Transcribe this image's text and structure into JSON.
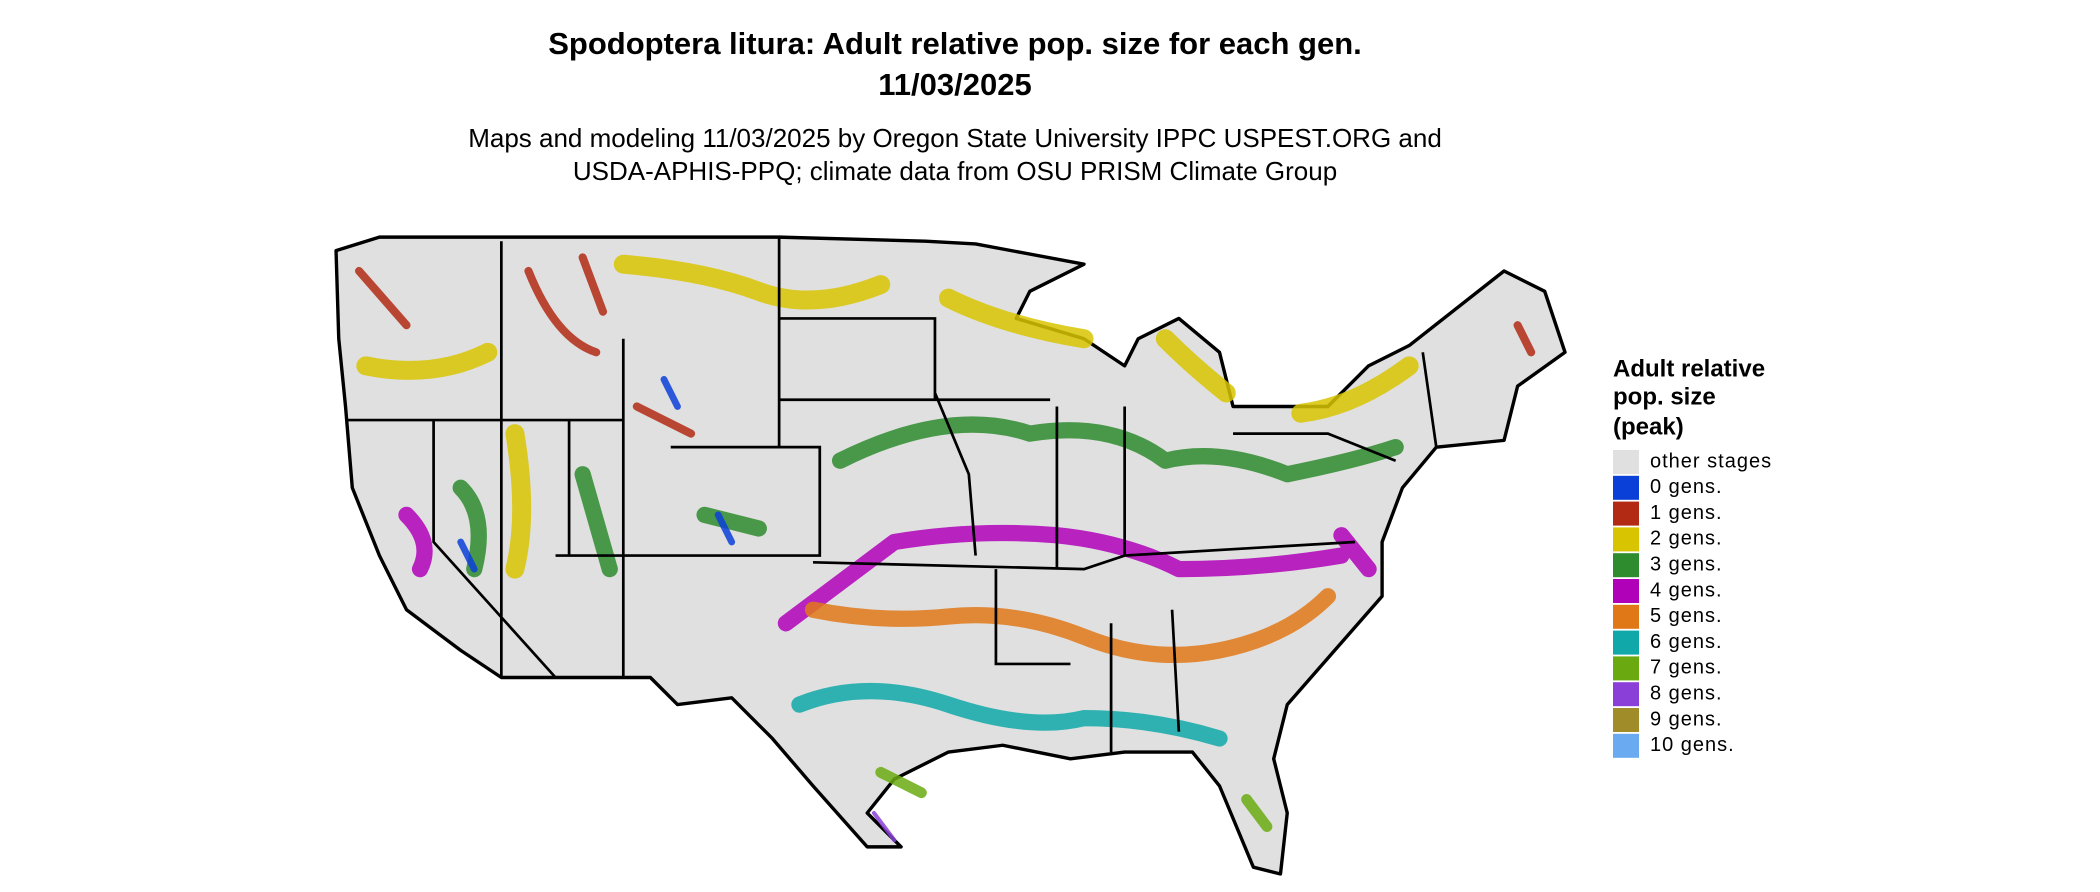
{
  "title": "Spodoptera litura: Adult relative pop. size for each gen.",
  "date": "11/03/2025",
  "subtitle": [
    "Maps and modeling 11/03/2025 by Oregon State University IPPC USPEST.ORG and",
    "USDA-APHIS-PPQ; climate data from OSU PRISM Climate Group"
  ],
  "legend": {
    "title": [
      "Adult relative",
      "pop. size",
      "(peak)"
    ],
    "items": [
      {
        "label": "other stages",
        "color": "#e0e0e0"
      },
      {
        "label": "0 gens.",
        "color": "#0a3fd8"
      },
      {
        "label": "1 gens.",
        "color": "#b22a14"
      },
      {
        "label": "2 gens.",
        "color": "#d8c400"
      },
      {
        "label": "3 gens.",
        "color": "#2e8b2e"
      },
      {
        "label": "4 gens.",
        "color": "#b000b8"
      },
      {
        "label": "5 gens.",
        "color": "#e07818"
      },
      {
        "label": "6 gens.",
        "color": "#10a8a8"
      },
      {
        "label": "7 gens.",
        "color": "#6aaa10"
      },
      {
        "label": "8 gens.",
        "color": "#8a40d8"
      },
      {
        "label": "9 gens.",
        "color": "#a08c28"
      },
      {
        "label": "10 gens.",
        "color": "#6aaaf0"
      }
    ]
  }
}
